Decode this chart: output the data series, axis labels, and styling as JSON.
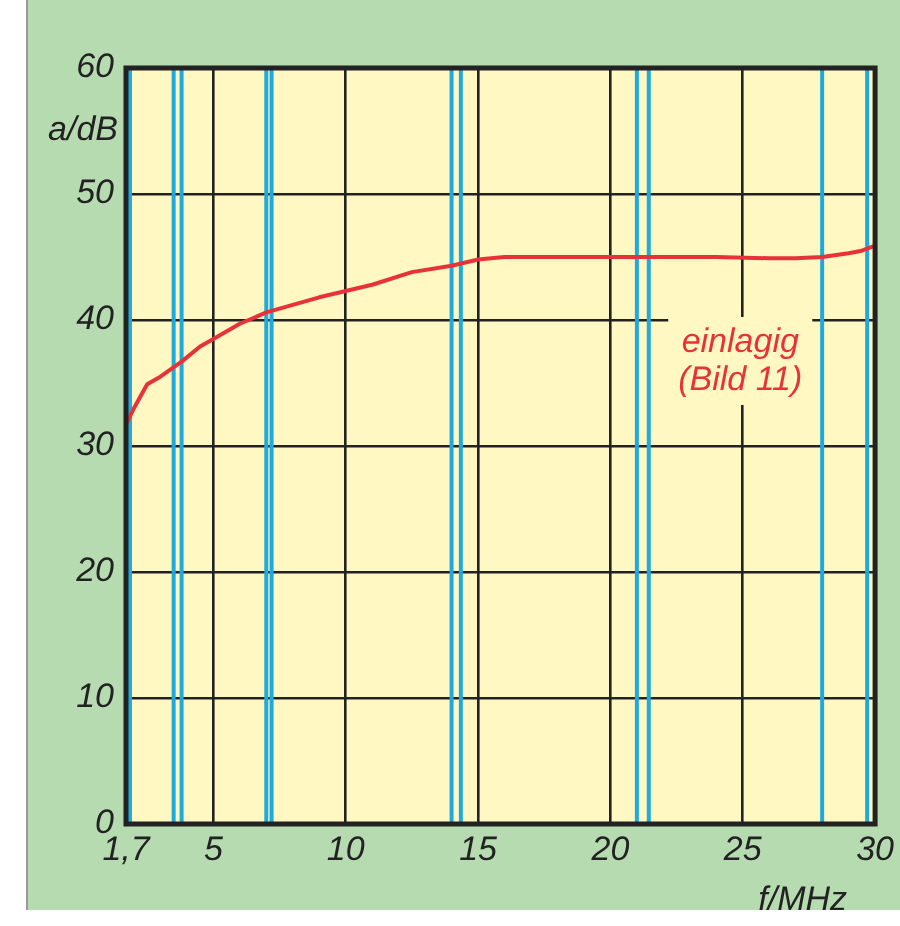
{
  "chart_data": {
    "type": "line",
    "xlabel": "f/MHz",
    "ylabel": "a/dB",
    "x": [
      1.7,
      2,
      2.5,
      3,
      3.8,
      4.5,
      5,
      6,
      7,
      8,
      9,
      10,
      11,
      12.5,
      14,
      15,
      16,
      18,
      20,
      22,
      24,
      26,
      27,
      28,
      29,
      29.5,
      30
    ],
    "series": [
      {
        "name": "einlagig (Bild 11)",
        "color": "#e8323a",
        "values": [
          31.7,
          33,
          34.9,
          35.5,
          36.7,
          37.9,
          38.5,
          39.7,
          40.6,
          41.2,
          41.8,
          42.3,
          42.8,
          43.8,
          44.3,
          44.8,
          45,
          45,
          45,
          45,
          45,
          44.9,
          44.9,
          45,
          45.3,
          45.5,
          45.9
        ]
      }
    ],
    "xlim": [
      1.7,
      30
    ],
    "xticks": [
      {
        "value": 1.7,
        "label": "1,7"
      },
      5,
      10,
      15,
      20,
      25,
      30
    ],
    "ylim": [
      0,
      60
    ],
    "yticks": [
      0,
      10,
      20,
      30,
      40,
      50,
      60
    ],
    "ref_lines": [
      {
        "axis": "x",
        "value": 1.85,
        "color": "#1eaadc"
      },
      {
        "axis": "x",
        "value": 3.5,
        "color": "#1eaadc"
      },
      {
        "axis": "x",
        "value": 3.8,
        "color": "#1eaadc"
      },
      {
        "axis": "x",
        "value": 7,
        "color": "#1eaadc"
      },
      {
        "axis": "x",
        "value": 7.2,
        "color": "#1eaadc"
      },
      {
        "axis": "x",
        "value": 14,
        "color": "#1eaadc"
      },
      {
        "axis": "x",
        "value": 14.35,
        "color": "#1eaadc"
      },
      {
        "axis": "x",
        "value": 21,
        "color": "#1eaadc"
      },
      {
        "axis": "x",
        "value": 21.45,
        "color": "#1eaadc"
      },
      {
        "axis": "x",
        "value": 28,
        "color": "#1eaadc"
      },
      {
        "axis": "x",
        "value": 29.7,
        "color": "#1eaadc"
      }
    ],
    "grid": true,
    "legend": false,
    "marker": "none",
    "line_style": "solid"
  }
}
